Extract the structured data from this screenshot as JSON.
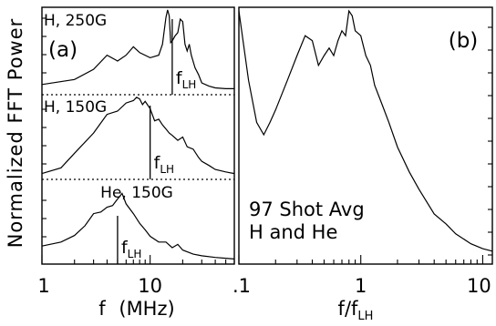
{
  "chart_data": [
    {
      "panel": "(a)",
      "type": "line",
      "x_scale": "log",
      "xlabel_main": "f",
      "xlabel_units": "(MHz)",
      "xlim": [
        1,
        60
      ],
      "x_ticks": [
        {
          "value": 1,
          "label": "1"
        },
        {
          "value": 10,
          "label": "10"
        }
      ],
      "ylabel": "Normalized FFT Power",
      "grid": false,
      "subpanels": [
        {
          "label": "H, 250G",
          "fLH_marker": 16,
          "marker_label": "f",
          "marker_sub": "LH",
          "x": [
            1,
            2,
            3,
            4,
            5,
            6,
            7,
            8,
            10,
            12,
            13,
            14,
            14.5,
            15,
            15.5,
            16,
            17,
            18,
            19,
            20,
            21,
            22,
            23,
            24,
            26,
            28,
            30,
            35,
            40,
            50,
            60
          ],
          "y": [
            0.1,
            0.16,
            0.28,
            0.45,
            0.38,
            0.45,
            0.55,
            0.48,
            0.42,
            0.45,
            0.58,
            0.9,
            0.99,
            0.92,
            0.6,
            0.62,
            0.68,
            0.72,
            0.88,
            0.85,
            0.58,
            0.5,
            0.58,
            0.45,
            0.3,
            0.22,
            0.12,
            0.08,
            0.06,
            0.05,
            0.05
          ]
        },
        {
          "label": "H, 150G",
          "fLH_marker": 10,
          "marker_label": "f",
          "marker_sub": "LH",
          "x": [
            1,
            1.5,
            2,
            3,
            4,
            5,
            6,
            7,
            7.5,
            8,
            8.5,
            9,
            10,
            11,
            12,
            13,
            14,
            15,
            16,
            18,
            20,
            22,
            25,
            28,
            30,
            35,
            40,
            50,
            60
          ],
          "y": [
            0.05,
            0.12,
            0.3,
            0.55,
            0.78,
            0.82,
            0.92,
            0.95,
            0.99,
            0.97,
            0.9,
            0.94,
            0.85,
            0.7,
            0.72,
            0.65,
            0.6,
            0.55,
            0.52,
            0.46,
            0.5,
            0.38,
            0.35,
            0.25,
            0.2,
            0.15,
            0.1,
            0.07,
            0.05
          ]
        },
        {
          "label": "He, 150G",
          "fLH_marker": 5,
          "marker_label": "f",
          "marker_sub": "LH",
          "x": [
            1,
            1.5,
            2,
            2.5,
            3,
            3.5,
            4,
            4.5,
            5,
            5.5,
            6,
            7,
            8,
            9,
            10,
            12,
            14,
            16,
            18,
            20,
            25,
            30,
            40,
            50,
            60
          ],
          "y": [
            0.2,
            0.25,
            0.33,
            0.45,
            0.6,
            0.62,
            0.68,
            0.7,
            0.78,
            0.85,
            0.72,
            0.6,
            0.48,
            0.4,
            0.32,
            0.25,
            0.25,
            0.18,
            0.22,
            0.15,
            0.1,
            0.08,
            0.06,
            0.05,
            0.04
          ]
        }
      ]
    },
    {
      "panel": "(b)",
      "type": "line",
      "x_scale": "log",
      "xlabel_main": "f/f",
      "xlabel_sub": "LH",
      "xlim": [
        0.1,
        12
      ],
      "x_ticks": [
        {
          "value": 0.1,
          "label": ".1"
        },
        {
          "value": 1,
          "label": "1"
        },
        {
          "value": 10,
          "label": "10"
        }
      ],
      "annotation": [
        "97 Shot Avg",
        "H and He"
      ],
      "grid": false,
      "x": [
        0.1,
        0.12,
        0.14,
        0.16,
        0.18,
        0.2,
        0.25,
        0.3,
        0.35,
        0.4,
        0.45,
        0.5,
        0.55,
        0.6,
        0.65,
        0.7,
        0.75,
        0.8,
        0.85,
        0.9,
        1.0,
        1.1,
        1.2,
        1.3,
        1.5,
        1.7,
        2,
        2.5,
        3,
        4,
        5,
        6,
        8,
        10,
        12
      ],
      "y": [
        1.0,
        0.72,
        0.55,
        0.5,
        0.55,
        0.6,
        0.72,
        0.82,
        0.9,
        0.88,
        0.78,
        0.82,
        0.85,
        0.82,
        0.88,
        0.92,
        0.9,
        1.0,
        0.98,
        0.92,
        0.9,
        0.82,
        0.78,
        0.7,
        0.62,
        0.55,
        0.45,
        0.35,
        0.28,
        0.18,
        0.14,
        0.1,
        0.06,
        0.04,
        0.03
      ]
    }
  ]
}
